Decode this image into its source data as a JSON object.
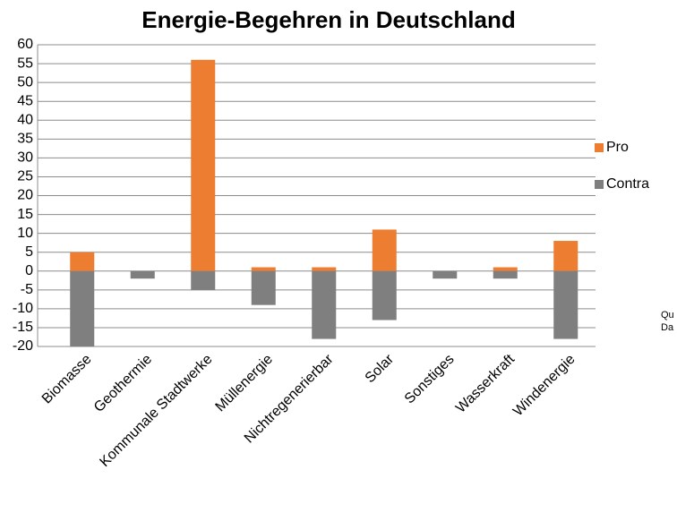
{
  "chart_data": {
    "type": "bar",
    "title": "Energie-Begehren in Deutschland",
    "categories": [
      "Biomasse",
      "Geothermie",
      "Kommunale Stadtwerke",
      "Müllenergie",
      "Nichtregenerierbar",
      "Solar",
      "Sonstiges",
      "Wasserkraft",
      "Windenergie"
    ],
    "series": [
      {
        "name": "Pro",
        "color": "#ed7d31",
        "values": [
          5,
          0,
          56,
          1,
          1,
          11,
          0,
          1,
          8
        ]
      },
      {
        "name": "Contra",
        "color": "#7f7f7f",
        "values": [
          -20,
          -2,
          -5,
          -9,
          -18,
          -13,
          -2,
          -2,
          -18
        ]
      }
    ],
    "ylim": [
      -20,
      60
    ],
    "yticks": [
      -20,
      -15,
      -10,
      -5,
      0,
      5,
      10,
      15,
      20,
      25,
      30,
      35,
      40,
      45,
      50,
      55,
      60
    ],
    "grid": true,
    "legend": "right",
    "annotations": [
      "Qu",
      "Da"
    ]
  }
}
